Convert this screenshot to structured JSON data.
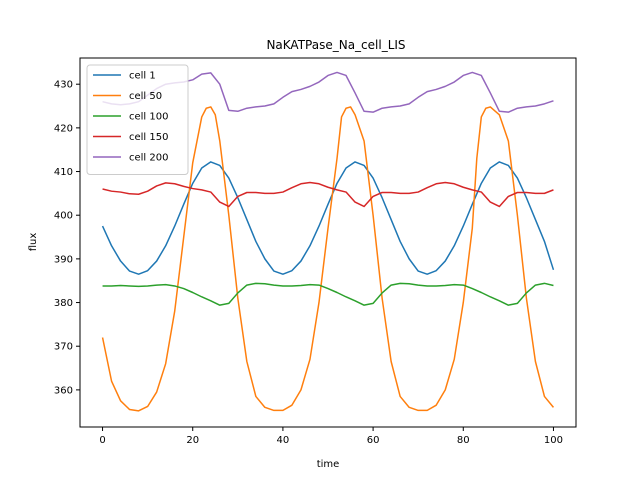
{
  "chart_data": {
    "type": "line",
    "title": "NaKATPase_Na_cell_LIS",
    "xlabel": "time",
    "ylabel": "flux",
    "xlim": [
      -5,
      105
    ],
    "ylim": [
      351.5,
      436
    ],
    "xticks": [
      0,
      20,
      40,
      60,
      80,
      100
    ],
    "yticks": [
      360,
      370,
      380,
      390,
      400,
      410,
      420,
      430
    ],
    "grid": false,
    "legend_position": "top-left",
    "series": [
      {
        "name": "cell 1",
        "color": "#1f77b4",
        "x": [
          0,
          2,
          4,
          6,
          8,
          10,
          12,
          14,
          16,
          18,
          20,
          22,
          24,
          26,
          28,
          30,
          32,
          34,
          36,
          38,
          40,
          42,
          44,
          46,
          48,
          50,
          52,
          54,
          56,
          58,
          60,
          62,
          64,
          66,
          68,
          70,
          72,
          74,
          76,
          78,
          80,
          82,
          84,
          86,
          88,
          90,
          92,
          94,
          96,
          98,
          100
        ],
        "y": [
          397.5,
          393.0,
          389.5,
          387.2,
          386.5,
          387.3,
          389.5,
          393.0,
          397.5,
          402.5,
          407.3,
          410.8,
          412.2,
          411.4,
          408.5,
          404.0,
          399.0,
          394.0,
          390.0,
          387.2,
          386.5,
          387.3,
          389.5,
          393.0,
          397.5,
          402.5,
          407.3,
          410.8,
          412.2,
          411.4,
          408.5,
          404.0,
          399.0,
          394.0,
          390.0,
          387.2,
          386.5,
          387.3,
          389.5,
          393.0,
          397.5,
          402.5,
          407.3,
          410.8,
          412.2,
          411.4,
          408.5,
          404.0,
          399.0,
          394.0,
          387.5
        ]
      },
      {
        "name": "cell 50",
        "color": "#ff7f0e",
        "x": [
          0,
          2,
          4,
          6,
          8,
          10,
          12,
          14,
          16,
          18,
          20,
          22,
          23,
          24,
          25,
          26,
          28,
          30,
          32,
          34,
          36,
          38,
          40,
          42,
          44,
          46,
          48,
          50,
          52,
          53,
          54,
          55,
          56,
          58,
          60,
          62,
          64,
          66,
          68,
          70,
          72,
          74,
          76,
          78,
          80,
          82,
          83,
          84,
          85,
          86,
          88,
          90,
          92,
          94,
          96,
          98,
          100
        ],
        "y": [
          372.0,
          362.0,
          357.5,
          355.5,
          355.2,
          356.2,
          359.5,
          366.0,
          378.0,
          395.0,
          412.0,
          422.5,
          424.5,
          424.8,
          423.0,
          417.0,
          400.0,
          381.0,
          366.5,
          358.5,
          356.0,
          355.3,
          355.3,
          356.5,
          360.0,
          367.0,
          380.0,
          397.0,
          413.0,
          422.5,
          424.5,
          424.8,
          423.0,
          417.0,
          400.0,
          381.0,
          366.5,
          358.5,
          356.0,
          355.3,
          355.3,
          356.5,
          360.0,
          367.0,
          380.0,
          397.0,
          413.0,
          422.5,
          424.5,
          424.8,
          423.0,
          417.0,
          400.0,
          381.0,
          366.5,
          358.5,
          356.0
        ]
      },
      {
        "name": "cell 100",
        "color": "#2ca02c",
        "x": [
          0,
          2,
          4,
          6,
          8,
          10,
          12,
          14,
          16,
          18,
          20,
          22,
          24,
          26,
          28,
          30,
          32,
          34,
          36,
          38,
          40,
          42,
          44,
          46,
          48,
          50,
          52,
          54,
          56,
          58,
          60,
          62,
          64,
          66,
          68,
          70,
          72,
          74,
          76,
          78,
          80,
          82,
          84,
          86,
          88,
          90,
          92,
          94,
          96,
          98,
          100
        ],
        "y": [
          383.8,
          383.8,
          383.9,
          383.8,
          383.7,
          383.8,
          384.0,
          384.1,
          383.8,
          383.2,
          382.3,
          381.3,
          380.4,
          379.4,
          379.8,
          382.2,
          384.0,
          384.4,
          384.3,
          384.0,
          383.8,
          383.8,
          383.9,
          384.1,
          384.0,
          383.2,
          382.3,
          381.3,
          380.4,
          379.4,
          379.8,
          382.2,
          384.0,
          384.4,
          384.3,
          384.0,
          383.8,
          383.8,
          383.9,
          384.1,
          384.0,
          383.2,
          382.3,
          381.3,
          380.4,
          379.4,
          379.8,
          382.2,
          384.0,
          384.4,
          383.9
        ]
      },
      {
        "name": "cell 150",
        "color": "#d62728",
        "x": [
          0,
          2,
          4,
          6,
          8,
          10,
          12,
          14,
          16,
          18,
          20,
          22,
          24,
          26,
          28,
          30,
          32,
          34,
          36,
          38,
          40,
          42,
          44,
          46,
          48,
          50,
          52,
          54,
          56,
          58,
          60,
          62,
          64,
          66,
          68,
          70,
          72,
          74,
          76,
          78,
          80,
          82,
          84,
          86,
          88,
          90,
          92,
          94,
          96,
          98,
          100
        ],
        "y": [
          406.0,
          405.5,
          405.3,
          404.9,
          404.8,
          405.5,
          406.7,
          407.4,
          407.2,
          406.6,
          406.1,
          405.8,
          405.3,
          403.0,
          402.0,
          404.3,
          405.2,
          405.2,
          405.0,
          405.0,
          405.3,
          406.3,
          407.2,
          407.5,
          407.2,
          406.4,
          405.8,
          405.3,
          403.0,
          402.0,
          404.3,
          405.2,
          405.2,
          405.0,
          405.0,
          405.3,
          406.3,
          407.2,
          407.5,
          407.2,
          406.4,
          405.8,
          405.3,
          403.0,
          402.0,
          404.3,
          405.2,
          405.2,
          405.0,
          405.0,
          405.8
        ]
      },
      {
        "name": "cell 200",
        "color": "#9467bd",
        "x": [
          0,
          2,
          4,
          6,
          8,
          10,
          12,
          14,
          16,
          18,
          20,
          22,
          24,
          26,
          28,
          30,
          32,
          34,
          36,
          38,
          40,
          42,
          44,
          46,
          48,
          50,
          52,
          54,
          56,
          58,
          60,
          62,
          64,
          66,
          68,
          70,
          72,
          74,
          76,
          78,
          80,
          82,
          84,
          86,
          88,
          90,
          92,
          94,
          96,
          98,
          100
        ],
        "y": [
          426.0,
          425.5,
          425.3,
          425.5,
          426.0,
          427.5,
          429.0,
          430.0,
          430.3,
          430.5,
          431.0,
          432.3,
          432.6,
          430.0,
          424.0,
          423.8,
          424.5,
          424.8,
          425.0,
          425.5,
          427.0,
          428.3,
          428.8,
          429.5,
          430.5,
          432.0,
          432.7,
          432.0,
          428.0,
          423.8,
          423.6,
          424.5,
          424.8,
          425.0,
          425.5,
          427.0,
          428.3,
          428.8,
          429.5,
          430.5,
          432.0,
          432.7,
          432.0,
          428.0,
          423.8,
          423.6,
          424.5,
          424.8,
          425.0,
          425.5,
          426.2
        ]
      }
    ]
  }
}
